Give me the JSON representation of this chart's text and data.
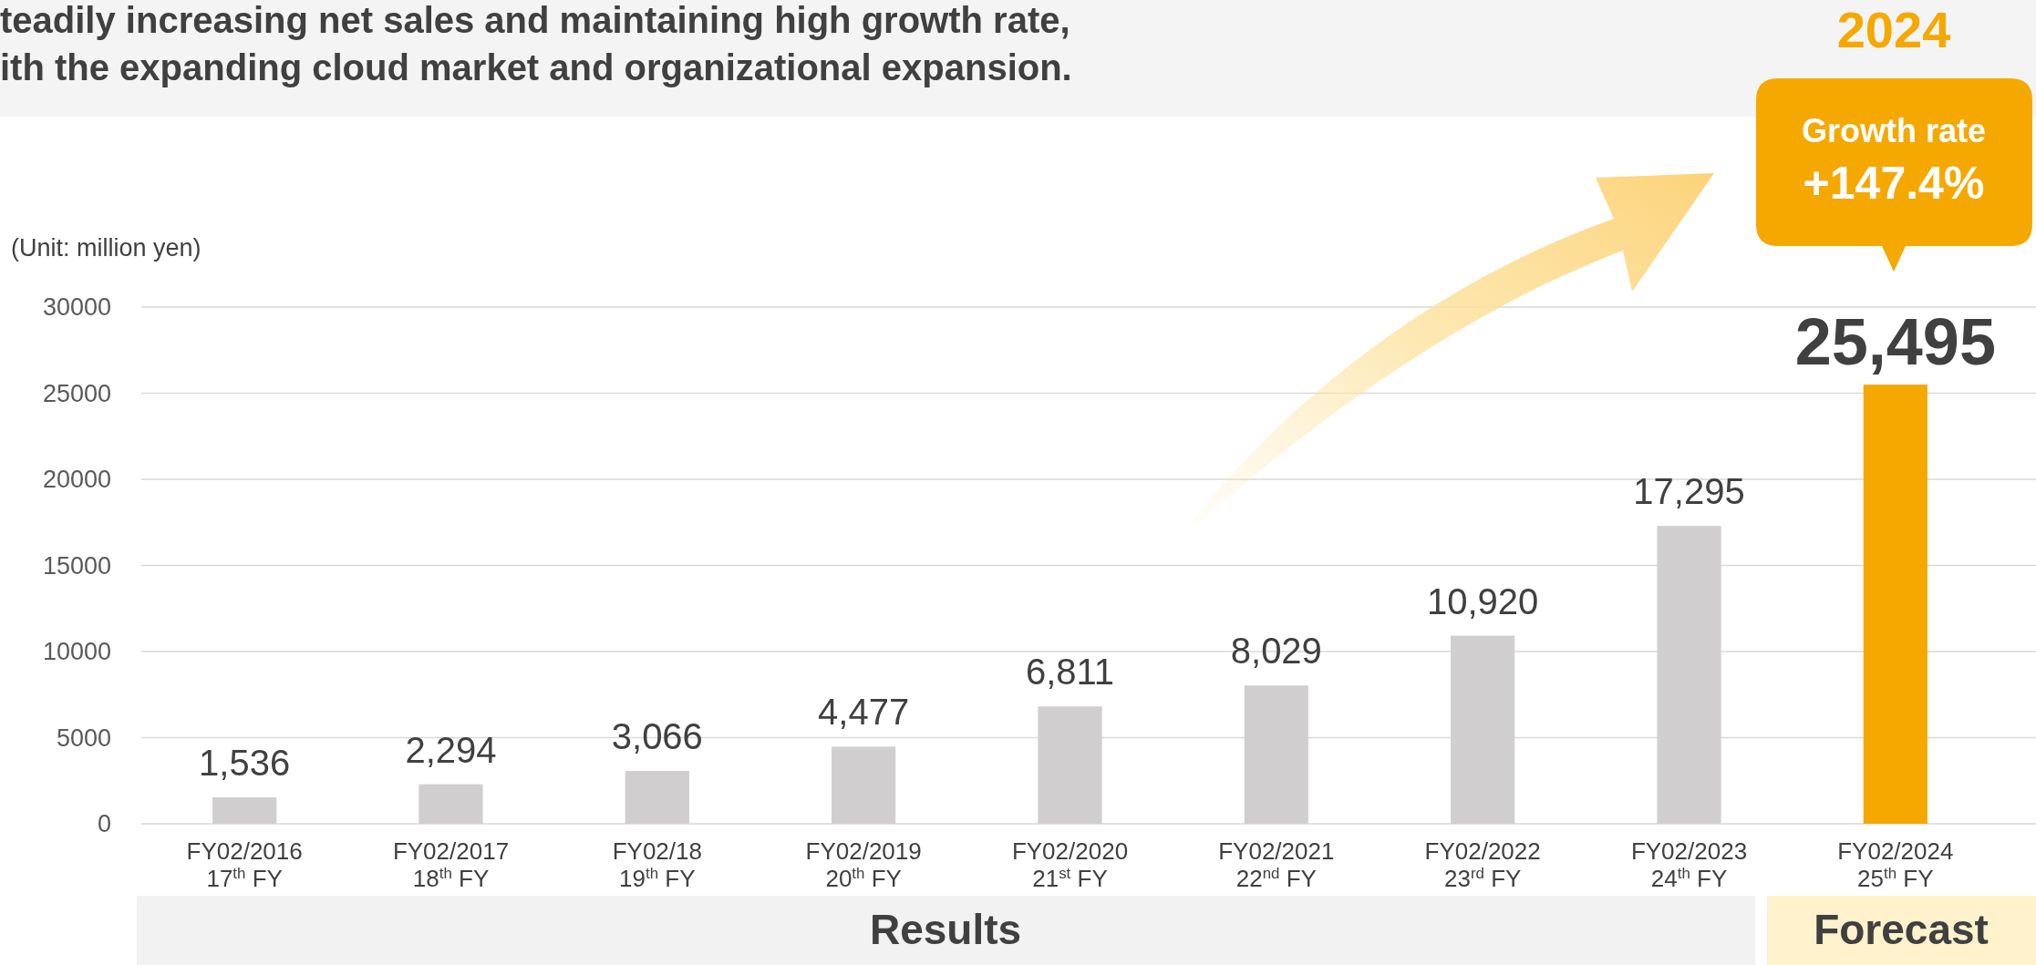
{
  "chart_data": {
    "type": "bar",
    "title": "teadily increasing net sales and maintaining high growth rate,\nith the expanding cloud market and organizational expansion.",
    "categories": [
      "FY02/2016\n17$^{th}$ FY",
      "FY02/2017\n18$^{th}$ FY",
      "FY02/18\n19$^{th}$ FY",
      "FY02/2019\n20$^{th}$ FY",
      "FY02/2020\n21$^{st}$ FY",
      "FY02/2021\n22$^{nd}$ FY",
      "FY02/2022\n23$^{rd}$ FY",
      "FY02/2023\n24$^{th}$ FY",
      "FY02/2024\n25$^{th}$ FY"
    ],
    "values": [
      1536,
      2294,
      3066,
      4477,
      6811,
      8029,
      10920,
      17295,
      25495
    ],
    "colors": [
      "#d0cece",
      "#d0cece",
      "#d0cece",
      "#d0cece",
      "#d0cece",
      "#d0cece",
      "#d0cece",
      "#d0cece",
      "#f5a800"
    ],
    "value_labels": [
      "1,536",
      "2,294",
      "3,066",
      "4,477",
      "6,811",
      "8,029",
      "10,920",
      "17,295",
      "25,495"
    ],
    "ylim": [
      0,
      30000
    ],
    "yticks": [
      0,
      5000,
      10000,
      15000,
      20000,
      25000,
      30000
    ],
    "grid": "y",
    "annotations": [
      "(Unit: million yen)",
      "2024",
      "Growth rate\n+147.4%",
      "Results",
      "Forecast"
    ]
  }
}
